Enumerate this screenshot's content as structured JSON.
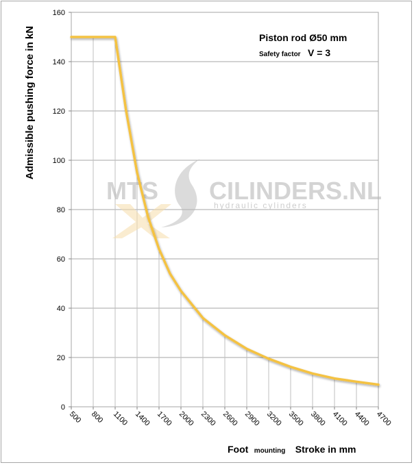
{
  "chart_data": {
    "type": "line",
    "title": "",
    "ylabel": "Admissible pushing force in kN",
    "xlabel_prefix": "Foot",
    "xlabel_mounting": "mounting",
    "xlabel": "Stroke in mm",
    "annotation_line1": "Piston rod Ø50 mm",
    "annotation_line2_prefix": "Safety factor",
    "annotation_line2_value": "V = 3",
    "categories": [
      "500",
      "800",
      "1100",
      "1400",
      "1700",
      "2000",
      "2300",
      "2600",
      "2900",
      "3200",
      "3500",
      "3800",
      "4100",
      "4400",
      "4700"
    ],
    "yticks": [
      0,
      20,
      40,
      60,
      80,
      100,
      120,
      140,
      160
    ],
    "ylim": [
      0,
      160
    ],
    "xlim": [
      500,
      4700
    ],
    "grid": true,
    "series": [
      {
        "color": "#f4c242",
        "x": [
          500,
          1100,
          1250,
          1400,
          1550,
          1700,
          1850,
          2000,
          2300,
          2600,
          2900,
          3200,
          3500,
          3800,
          4100,
          4400,
          4700
        ],
        "y": [
          150,
          150,
          120,
          95,
          77,
          64,
          54,
          47,
          36,
          29,
          23.5,
          19.5,
          16.2,
          13.5,
          11.5,
          10.2,
          9
        ]
      }
    ]
  },
  "watermark": {
    "brand_left": "MTS",
    "brand_right": "CILINDERS.NL",
    "tagline": "hydraulic cylinders"
  }
}
